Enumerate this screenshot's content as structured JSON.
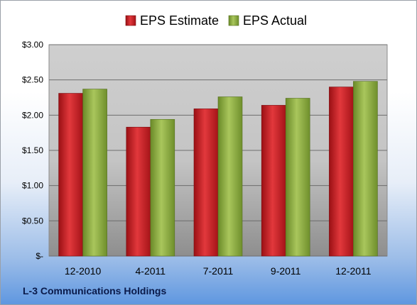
{
  "chart_data": {
    "type": "bar",
    "categories": [
      "12-2010",
      "4-2011",
      "7-2011",
      "9-2011",
      "12-2011"
    ],
    "series": [
      {
        "name": "EPS Estimate",
        "values": [
          2.31,
          1.83,
          2.09,
          2.14,
          2.4
        ],
        "color": "#c81e24"
      },
      {
        "name": "EPS Actual",
        "values": [
          2.37,
          1.94,
          2.26,
          2.24,
          2.48
        ],
        "color": "#8cae40"
      }
    ],
    "ylim": [
      0,
      3.0
    ],
    "y_ticks": [
      0,
      0.5,
      1.0,
      1.5,
      2.0,
      2.5,
      3.0
    ],
    "y_tick_labels": [
      "$-",
      "$0.50",
      "$1.00",
      "$1.50",
      "$2.00",
      "$2.50",
      "$3.00"
    ],
    "grid": true,
    "legend_position": "top-center"
  },
  "footer": {
    "company": "L-3 Communications Holdings"
  }
}
